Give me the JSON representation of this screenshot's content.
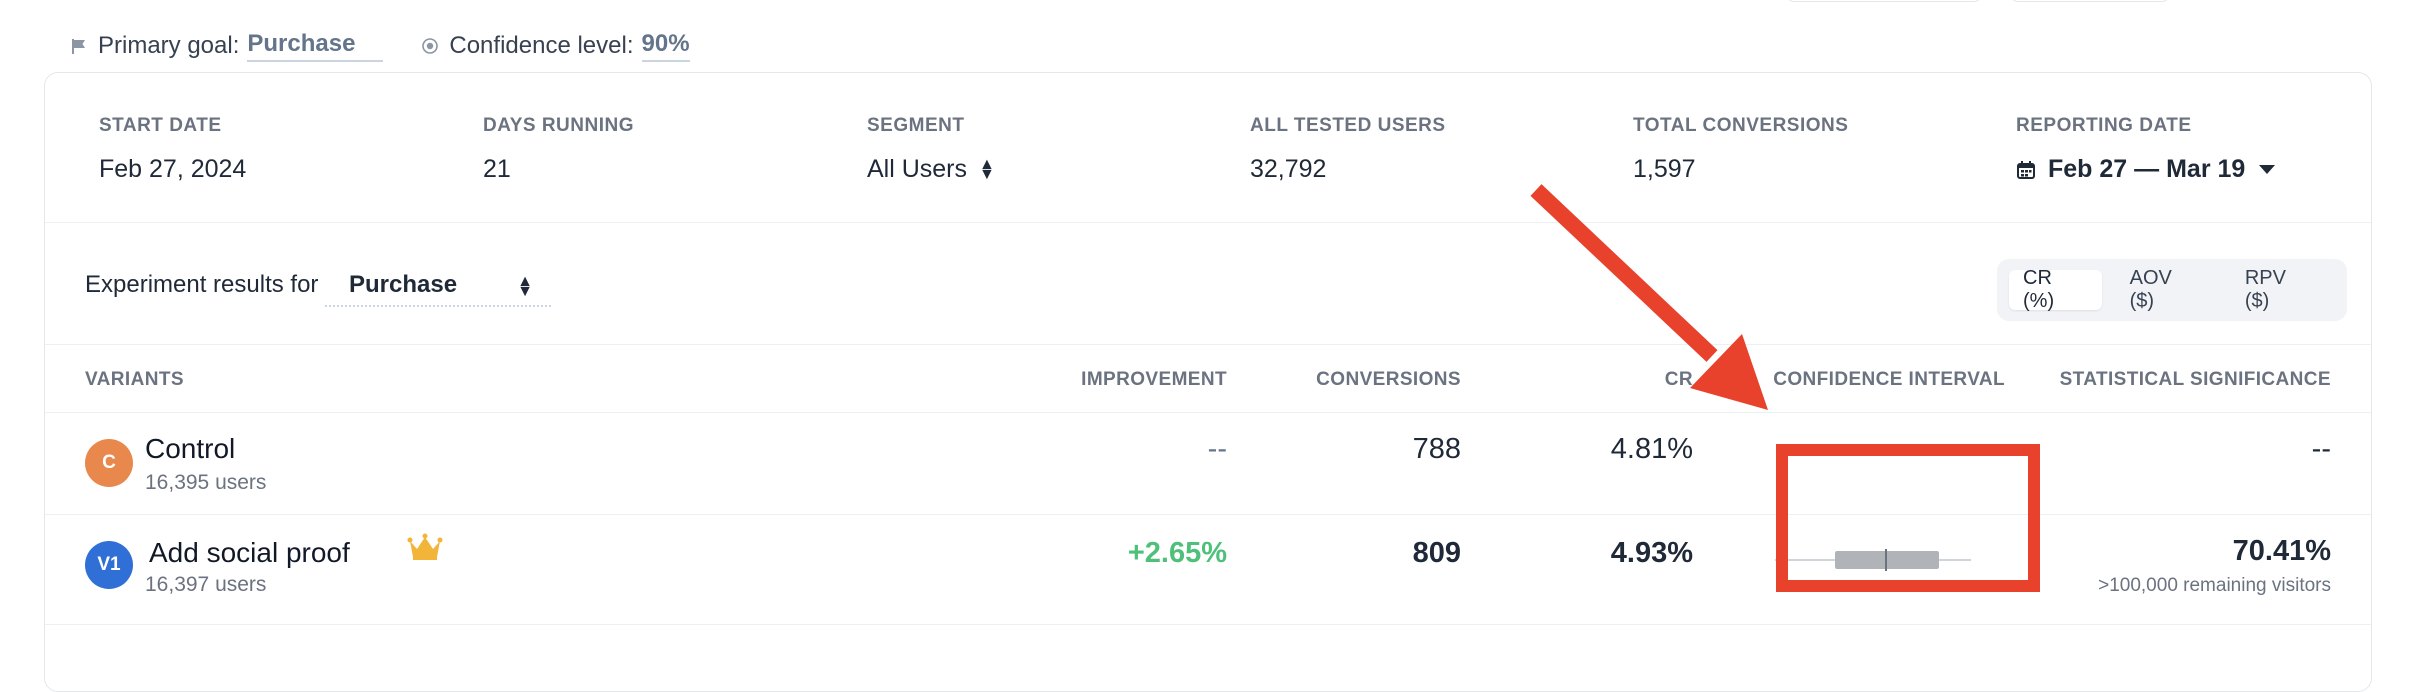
{
  "goal_bar": {
    "primary_goal_label": "Primary goal:",
    "primary_goal_value": "Purchase",
    "confidence_label": "Confidence level:",
    "confidence_value": "90%"
  },
  "stats": {
    "start_date_label": "START DATE",
    "start_date_value": "Feb 27, 2024",
    "days_running_label": "DAYS RUNNING",
    "days_running_value": "21",
    "segment_label": "SEGMENT",
    "segment_value": "All Users",
    "tested_users_label": "ALL TESTED USERS",
    "tested_users_value": "32,792",
    "total_conversions_label": "TOTAL CONVERSIONS",
    "total_conversions_value": "1,597",
    "reporting_date_label": "REPORTING DATE",
    "reporting_date_value": "Feb 27 — Mar 19"
  },
  "results": {
    "label": "Experiment results for",
    "goal": "Purchase",
    "metrics": [
      "CR (%)",
      "AOV ($)",
      "RPV ($)"
    ],
    "active_metric": "CR (%)"
  },
  "table": {
    "headers": {
      "variants": "VARIANTS",
      "improvement": "IMPROVEMENT",
      "conversions": "CONVERSIONS",
      "cr": "CR",
      "confidence_interval": "CONFIDENCE INTERVAL",
      "significance": "STATISTICAL SIGNIFICANCE"
    },
    "rows": [
      {
        "avatar": "C",
        "avatar_color": "#e8884d",
        "name": "Control",
        "users": "16,395 users",
        "improvement": "--",
        "conversions": "788",
        "cr": "4.81%",
        "significance": "--",
        "significance_note": ""
      },
      {
        "avatar": "V1",
        "avatar_color": "#2f6fd6",
        "name": "Add social proof",
        "users": "16,397 users",
        "winner_icon": "crown-icon",
        "improvement": "+2.65%",
        "conversions": "809",
        "cr": "4.93%",
        "significance": "70.41%",
        "significance_note": ">100,000 remaining visitors"
      }
    ]
  },
  "colors": {
    "annotation": "#e8412c",
    "positive": "#4ec07a",
    "crown": "#f2b53a"
  }
}
